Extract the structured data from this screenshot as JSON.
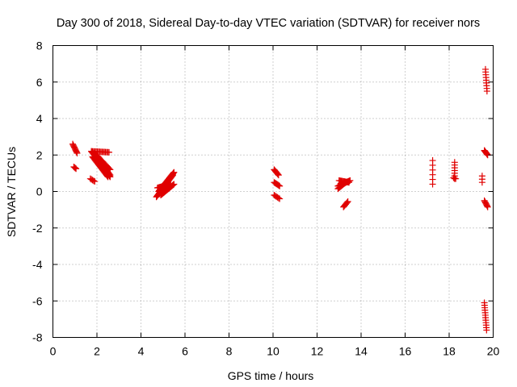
{
  "chart_data": {
    "type": "scatter",
    "title": "Day 300 of 2018, Sidereal Day-to-day VTEC variation (SDTVAR) for receiver nors",
    "xlabel": "GPS time / hours",
    "ylabel": "SDTVAR / TECUs",
    "xlim": [
      0,
      20
    ],
    "ylim": [
      -8,
      8
    ],
    "x_ticks": [
      0,
      2,
      4,
      6,
      8,
      10,
      12,
      14,
      16,
      18,
      20
    ],
    "y_ticks": [
      -8,
      -6,
      -4,
      -2,
      0,
      2,
      4,
      6,
      8
    ],
    "grid": true,
    "marker": "plus",
    "series_color": "#e00000",
    "segments": [
      {
        "x0": 0.9,
        "y0": 2.6,
        "x1": 1.1,
        "y1": 2.1,
        "n": 10
      },
      {
        "x0": 0.95,
        "y0": 1.35,
        "x1": 1.05,
        "y1": 1.25,
        "n": 4
      },
      {
        "x0": 1.75,
        "y0": 2.2,
        "x1": 2.6,
        "y1": 0.8,
        "n": 32
      },
      {
        "x0": 1.8,
        "y0": 1.9,
        "x1": 2.5,
        "y1": 0.8,
        "n": 24
      },
      {
        "x0": 1.9,
        "y0": 2.1,
        "x1": 2.6,
        "y1": 1.2,
        "n": 18
      },
      {
        "x0": 1.75,
        "y0": 2.2,
        "x1": 2.55,
        "y1": 2.15,
        "n": 16
      },
      {
        "x0": 1.7,
        "y0": 0.7,
        "x1": 1.9,
        "y1": 0.55,
        "n": 5
      },
      {
        "x0": 2.3,
        "y0": 1.4,
        "x1": 2.6,
        "y1": 0.9,
        "n": 10
      },
      {
        "x0": 4.7,
        "y0": -0.3,
        "x1": 5.45,
        "y1": 0.9,
        "n": 30
      },
      {
        "x0": 4.8,
        "y0": 0.0,
        "x1": 5.5,
        "y1": 1.05,
        "n": 28
      },
      {
        "x0": 4.75,
        "y0": 0.2,
        "x1": 5.35,
        "y1": 0.4,
        "n": 18
      },
      {
        "x0": 4.9,
        "y0": -0.2,
        "x1": 5.5,
        "y1": 0.4,
        "n": 20
      },
      {
        "x0": 10.05,
        "y0": 1.2,
        "x1": 10.25,
        "y1": 0.9,
        "n": 8
      },
      {
        "x0": 10.05,
        "y0": 0.5,
        "x1": 10.3,
        "y1": 0.3,
        "n": 8
      },
      {
        "x0": 10.05,
        "y0": -0.2,
        "x1": 10.3,
        "y1": -0.4,
        "n": 6
      },
      {
        "x0": 12.95,
        "y0": 0.3,
        "x1": 13.5,
        "y1": 0.6,
        "n": 18
      },
      {
        "x0": 13.0,
        "y0": 0.6,
        "x1": 13.45,
        "y1": 0.5,
        "n": 12
      },
      {
        "x0": 12.95,
        "y0": 0.15,
        "x1": 13.3,
        "y1": 0.5,
        "n": 10
      },
      {
        "x0": 13.2,
        "y0": -0.85,
        "x1": 13.4,
        "y1": -0.55,
        "n": 7
      },
      {
        "x0": 17.25,
        "y0": 1.7,
        "x1": 17.25,
        "y1": 0.4,
        "n": 6
      },
      {
        "x0": 18.25,
        "y0": 1.6,
        "x1": 18.25,
        "y1": 0.7,
        "n": 7
      },
      {
        "x0": 18.2,
        "y0": 0.75,
        "x1": 18.3,
        "y1": 0.7,
        "n": 3
      },
      {
        "x0": 19.5,
        "y0": 0.85,
        "x1": 19.5,
        "y1": 0.5,
        "n": 3
      },
      {
        "x0": 19.65,
        "y0": 6.7,
        "x1": 19.72,
        "y1": 5.5,
        "n": 9
      },
      {
        "x0": 19.6,
        "y0": 2.25,
        "x1": 19.75,
        "y1": 2.0,
        "n": 8
      },
      {
        "x0": 19.6,
        "y0": -0.5,
        "x1": 19.75,
        "y1": -0.85,
        "n": 7
      },
      {
        "x0": 19.6,
        "y0": -6.1,
        "x1": 19.7,
        "y1": -7.6,
        "n": 12
      }
    ]
  }
}
